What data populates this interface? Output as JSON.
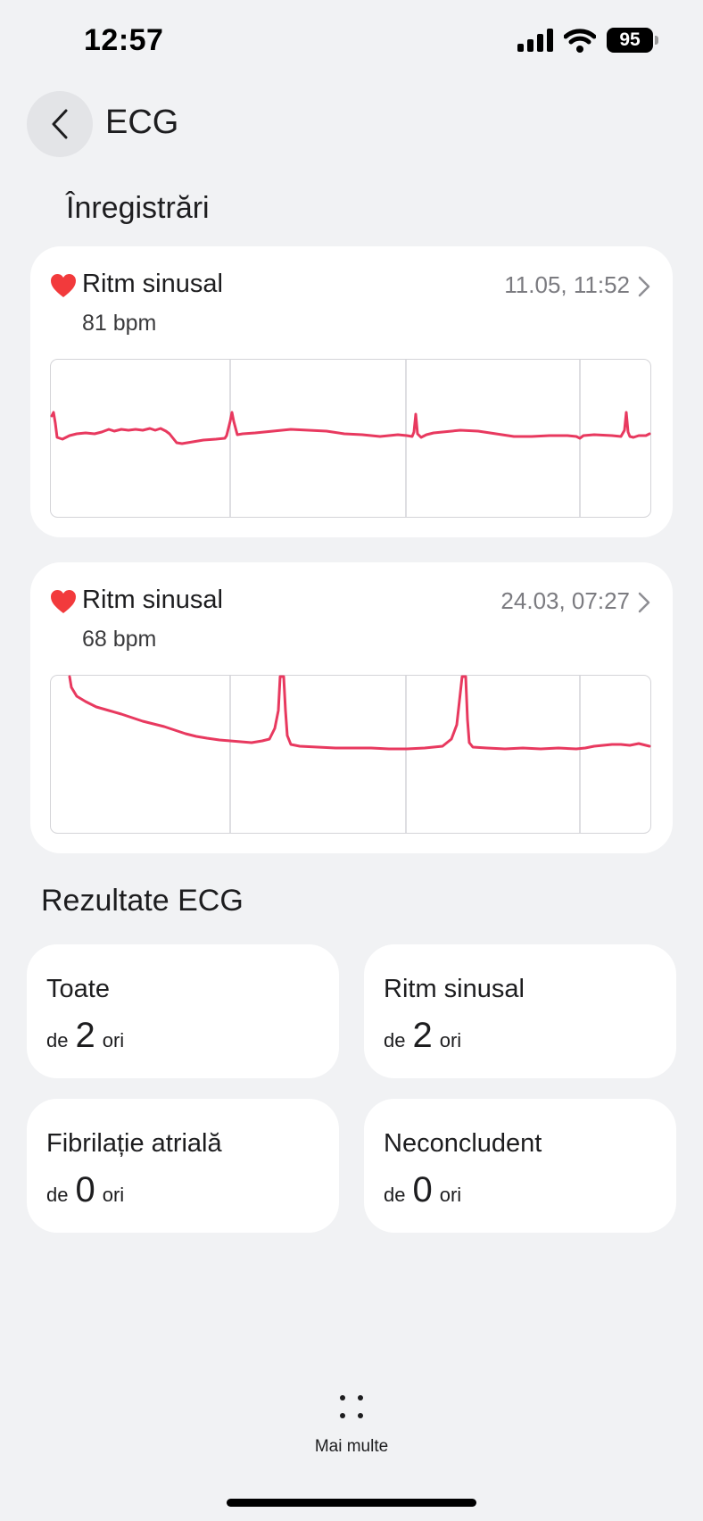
{
  "status_bar": {
    "time": "12:57",
    "battery": "95"
  },
  "header": {
    "title": "ECG"
  },
  "records_section": {
    "title": "Înregistrări"
  },
  "records": [
    {
      "label": "Ritm sinusal",
      "bpm": "81 bpm",
      "datetime": "11.05, 11:52"
    },
    {
      "label": "Ritm sinusal",
      "bpm": "68 bpm",
      "datetime": "24.03, 07:27"
    }
  ],
  "results_section": {
    "title": "Rezultate ECG"
  },
  "results": [
    {
      "label": "Toate",
      "prefix": "de",
      "count": "2",
      "suffix": "ori"
    },
    {
      "label": "Ritm sinusal",
      "prefix": "de",
      "count": "2",
      "suffix": "ori"
    },
    {
      "label": "Fibrilație atrială",
      "prefix": "de",
      "count": "0",
      "suffix": "ori"
    },
    {
      "label": "Neconcludent",
      "prefix": "de",
      "count": "0",
      "suffix": "ori"
    }
  ],
  "bottom_nav": {
    "more_label": "Mai multe",
    "more_icon": "four-dots-icon"
  },
  "colors": {
    "ecg_line": "#e8395f",
    "heart": "#f23a3c",
    "background": "#f1f2f4"
  }
}
